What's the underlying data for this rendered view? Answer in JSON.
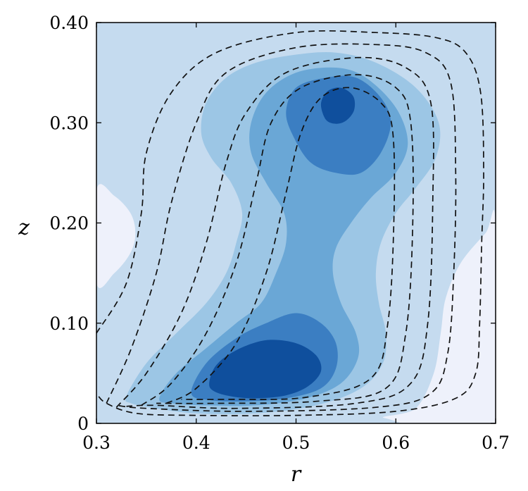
{
  "chart_data": {
    "type": "contour",
    "title": "",
    "xlabel": "r",
    "ylabel": "z",
    "xlim": [
      0.3,
      0.7
    ],
    "ylim": [
      0,
      0.4
    ],
    "x_ticks": [
      0.3,
      0.4,
      0.5,
      0.6,
      0.7
    ],
    "x_tick_labels": [
      "0.3",
      "0.4",
      "0.5",
      "0.6",
      "0.7"
    ],
    "y_ticks": [
      0,
      0.1,
      0.2,
      0.3,
      0.4
    ],
    "y_tick_labels": [
      "0",
      "0.10",
      "0.20",
      "0.30",
      "0.40"
    ],
    "grid": false,
    "legend": "none",
    "filled_levels": [
      {
        "level": 0,
        "color": "#eef1fb"
      },
      {
        "level": 1,
        "color": "#c5dbef"
      },
      {
        "level": 2,
        "color": "#9cc6e5"
      },
      {
        "level": 3,
        "color": "#6aa7d6"
      },
      {
        "level": 4,
        "color": "#3b7ec2"
      },
      {
        "level": 5,
        "color": "#0f4f9d"
      }
    ],
    "filled_regions": [
      {
        "level": 0,
        "polys": [
          [
            [
              0.3,
              0.14
            ],
            [
              0.318,
              0.15
            ],
            [
              0.334,
              0.17
            ],
            [
              0.339,
              0.19
            ],
            [
              0.334,
              0.21
            ],
            [
              0.318,
              0.227
            ],
            [
              0.3,
              0.233
            ]
          ],
          [
            [
              0.59,
              0.005
            ],
            [
              0.62,
              0.015
            ],
            [
              0.638,
              0.05
            ],
            [
              0.645,
              0.09
            ],
            [
              0.65,
              0.125
            ],
            [
              0.665,
              0.16
            ],
            [
              0.69,
              0.19
            ],
            [
              0.7,
              0.2
            ],
            [
              0.7,
              0
            ]
          ]
        ]
      },
      {
        "level": 2,
        "polys": [
          [
            [
              0.33,
              0.027
            ],
            [
              0.35,
              0.06
            ],
            [
              0.38,
              0.09
            ],
            [
              0.41,
              0.12
            ],
            [
              0.43,
              0.15
            ],
            [
              0.44,
              0.18
            ],
            [
              0.446,
              0.21
            ],
            [
              0.435,
              0.24
            ],
            [
              0.415,
              0.265
            ],
            [
              0.405,
              0.29
            ],
            [
              0.41,
              0.32
            ],
            [
              0.43,
              0.345
            ],
            [
              0.46,
              0.36
            ],
            [
              0.5,
              0.368
            ],
            [
              0.54,
              0.37
            ],
            [
              0.58,
              0.36
            ],
            [
              0.62,
              0.335
            ],
            [
              0.643,
              0.3
            ],
            [
              0.64,
              0.265
            ],
            [
              0.62,
              0.235
            ],
            [
              0.6,
              0.21
            ],
            [
              0.585,
              0.18
            ],
            [
              0.58,
              0.15
            ],
            [
              0.583,
              0.12
            ],
            [
              0.59,
              0.09
            ],
            [
              0.587,
              0.06
            ],
            [
              0.565,
              0.035
            ],
            [
              0.52,
              0.018
            ],
            [
              0.46,
              0.01
            ],
            [
              0.4,
              0.01
            ],
            [
              0.36,
              0.015
            ],
            [
              0.335,
              0.02
            ]
          ]
        ]
      },
      {
        "level": 3,
        "polys": [
          [
            [
              0.363,
              0.025
            ],
            [
              0.38,
              0.05
            ],
            [
              0.41,
              0.075
            ],
            [
              0.44,
              0.1
            ],
            [
              0.465,
              0.12
            ],
            [
              0.48,
              0.15
            ],
            [
              0.49,
              0.18
            ],
            [
              0.488,
              0.21
            ],
            [
              0.47,
              0.24
            ],
            [
              0.455,
              0.27
            ],
            [
              0.455,
              0.3
            ],
            [
              0.47,
              0.33
            ],
            [
              0.5,
              0.35
            ],
            [
              0.54,
              0.355
            ],
            [
              0.57,
              0.345
            ],
            [
              0.6,
              0.315
            ],
            [
              0.612,
              0.28
            ],
            [
              0.6,
              0.25
            ],
            [
              0.575,
              0.225
            ],
            [
              0.555,
              0.2
            ],
            [
              0.54,
              0.175
            ],
            [
              0.537,
              0.15
            ],
            [
              0.545,
              0.12
            ],
            [
              0.56,
              0.09
            ],
            [
              0.562,
              0.065
            ],
            [
              0.545,
              0.04
            ],
            [
              0.51,
              0.025
            ],
            [
              0.46,
              0.018
            ],
            [
              0.41,
              0.018
            ],
            [
              0.375,
              0.02
            ]
          ]
        ]
      },
      {
        "level": 4,
        "polys": [
          [
            [
              0.395,
              0.03
            ],
            [
              0.41,
              0.06
            ],
            [
              0.44,
              0.085
            ],
            [
              0.47,
              0.1
            ],
            [
              0.5,
              0.11
            ],
            [
              0.525,
              0.1
            ],
            [
              0.54,
              0.08
            ],
            [
              0.54,
              0.055
            ],
            [
              0.525,
              0.035
            ],
            [
              0.49,
              0.025
            ],
            [
              0.45,
              0.022
            ],
            [
              0.415,
              0.023
            ]
          ],
          [
            [
              0.49,
              0.31
            ],
            [
              0.5,
              0.335
            ],
            [
              0.53,
              0.345
            ],
            [
              0.56,
              0.345
            ],
            [
              0.585,
              0.325
            ],
            [
              0.595,
              0.3
            ],
            [
              0.585,
              0.27
            ],
            [
              0.565,
              0.25
            ],
            [
              0.54,
              0.25
            ],
            [
              0.515,
              0.26
            ],
            [
              0.498,
              0.285
            ]
          ]
        ]
      },
      {
        "level": 5,
        "polys": [
          [
            [
              0.413,
              0.04
            ],
            [
              0.42,
              0.058
            ],
            [
              0.44,
              0.073
            ],
            [
              0.47,
              0.083
            ],
            [
              0.5,
              0.08
            ],
            [
              0.52,
              0.068
            ],
            [
              0.525,
              0.052
            ],
            [
              0.512,
              0.037
            ],
            [
              0.49,
              0.028
            ],
            [
              0.46,
              0.025
            ],
            [
              0.435,
              0.027
            ],
            [
              0.418,
              0.032
            ]
          ],
          [
            [
              0.525,
              0.318
            ],
            [
              0.53,
              0.33
            ],
            [
              0.54,
              0.335
            ],
            [
              0.55,
              0.333
            ],
            [
              0.558,
              0.325
            ],
            [
              0.558,
              0.312
            ],
            [
              0.55,
              0.302
            ],
            [
              0.54,
              0.299
            ],
            [
              0.53,
              0.303
            ]
          ]
        ]
      }
    ],
    "dashed_lines": [
      [
        [
          0.3,
          0.09
        ],
        [
          0.33,
          0.14
        ],
        [
          0.345,
          0.21
        ],
        [
          0.35,
          0.27
        ],
        [
          0.375,
          0.33
        ],
        [
          0.42,
          0.37
        ],
        [
          0.5,
          0.39
        ],
        [
          0.58,
          0.39
        ],
        [
          0.64,
          0.385
        ],
        [
          0.67,
          0.37
        ],
        [
          0.685,
          0.33
        ],
        [
          0.688,
          0.25
        ],
        [
          0.686,
          0.18
        ],
        [
          0.684,
          0.1
        ],
        [
          0.68,
          0.05
        ],
        [
          0.66,
          0.025
        ],
        [
          0.6,
          0.012
        ],
        [
          0.5,
          0.008
        ],
        [
          0.4,
          0.008
        ],
        [
          0.34,
          0.01
        ],
        [
          0.31,
          0.02
        ],
        [
          0.3,
          0.03
        ]
      ],
      [
        [
          0.31,
          0.02
        ],
        [
          0.335,
          0.075
        ],
        [
          0.36,
          0.15
        ],
        [
          0.375,
          0.22
        ],
        [
          0.4,
          0.3
        ],
        [
          0.43,
          0.35
        ],
        [
          0.5,
          0.375
        ],
        [
          0.58,
          0.378
        ],
        [
          0.63,
          0.37
        ],
        [
          0.655,
          0.34
        ],
        [
          0.66,
          0.25
        ],
        [
          0.658,
          0.15
        ],
        [
          0.652,
          0.07
        ],
        [
          0.635,
          0.03
        ],
        [
          0.58,
          0.016
        ],
        [
          0.45,
          0.012
        ],
        [
          0.35,
          0.015
        ],
        [
          0.32,
          0.018
        ]
      ],
      [
        [
          0.32,
          0.016
        ],
        [
          0.35,
          0.05
        ],
        [
          0.385,
          0.11
        ],
        [
          0.41,
          0.18
        ],
        [
          0.43,
          0.26
        ],
        [
          0.45,
          0.31
        ],
        [
          0.49,
          0.35
        ],
        [
          0.56,
          0.365
        ],
        [
          0.61,
          0.355
        ],
        [
          0.635,
          0.32
        ],
        [
          0.637,
          0.22
        ],
        [
          0.632,
          0.1
        ],
        [
          0.615,
          0.04
        ],
        [
          0.56,
          0.02
        ],
        [
          0.44,
          0.015
        ],
        [
          0.36,
          0.018
        ],
        [
          0.33,
          0.017
        ]
      ],
      [
        [
          0.345,
          0.018
        ],
        [
          0.375,
          0.04
        ],
        [
          0.41,
          0.09
        ],
        [
          0.44,
          0.16
        ],
        [
          0.46,
          0.24
        ],
        [
          0.475,
          0.3
        ],
        [
          0.505,
          0.335
        ],
        [
          0.56,
          0.348
        ],
        [
          0.6,
          0.335
        ],
        [
          0.615,
          0.3
        ],
        [
          0.617,
          0.2
        ],
        [
          0.61,
          0.09
        ],
        [
          0.59,
          0.035
        ],
        [
          0.52,
          0.022
        ],
        [
          0.42,
          0.02
        ],
        [
          0.36,
          0.02
        ]
      ],
      [
        [
          0.37,
          0.02
        ],
        [
          0.4,
          0.035
        ],
        [
          0.44,
          0.08
        ],
        [
          0.47,
          0.15
        ],
        [
          0.49,
          0.23
        ],
        [
          0.505,
          0.29
        ],
        [
          0.525,
          0.325
        ],
        [
          0.555,
          0.335
        ],
        [
          0.585,
          0.32
        ],
        [
          0.597,
          0.29
        ],
        [
          0.598,
          0.2
        ],
        [
          0.592,
          0.1
        ],
        [
          0.575,
          0.045
        ],
        [
          0.51,
          0.026
        ],
        [
          0.43,
          0.024
        ],
        [
          0.385,
          0.024
        ]
      ]
    ]
  }
}
